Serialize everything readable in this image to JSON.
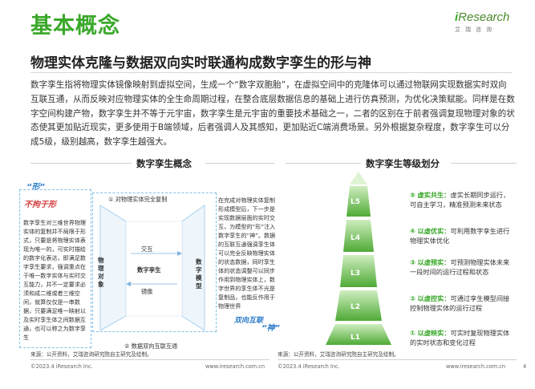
{
  "header": {
    "title": "基本概念",
    "subtitle": "物理实体克隆与数据双向实时联通构成数字孪生的形与神",
    "brand": {
      "logo_i": "i",
      "logo_rest": "Research",
      "sub": "艾瑞咨询"
    }
  },
  "intro": "数字孪生指将物理实体镜像映射到虚拟空间，生成一个“数字双胞胎”，在虚拟空间中的克隆体可以通过物联网实现数据实时双向互联互通，从而反映对应物理实体的全生命周期过程，在整合底层数据信息的基础上进行仿真预测，为优化决策赋能。同样是在数字空间构建产物，数字孪生并不等于元宇宙，数字孪生是元宇宙的重要技术基础之一，二者的区别在于前者强调复现物理对象的状态使其更加贴近现实，更多使用于B端领域，后者强调人及其感知，更加贴近C端消费场景。另外根据复杂程度，数字孪生可以分成5级，级别越高，数字孪生越强大。",
  "left": {
    "title": "数字孪生概念",
    "stamp_xing": "“形”",
    "stamp_xing_sub": "不拘于形",
    "stamp_shen": "“神”",
    "stamp_shen_sub": "双向互联",
    "note_left": "数字孪生对三维世界物理实体的复制并不局限于形式，只要是将物理实体表现为唯一的，可实时描绘的数字化表达，即满足数字孪生要求，强调重点在于唯一数字实体与实时交互能力，并不一定要求必须和成二维或者三维空间，就算仅仅是一串数据，只要满足唯一映射以及实时孪生体之间数据互通，也可以称之为数字孪生",
    "note_right": "在完成对物理实体复制形成模型后，下一步是实现数据层面的实时交互，为模型的“形”注入数字孪生的“神”。数据的互联互通强调孪生体可以完全反映物理实体的状态数据，同时孪生体的状态调整可以同步作用到物理实体上，数字世界的孪生体不光是复制品，也能反作用于物理世界",
    "step1": "① 对物理实体完全复制",
    "step2": "② 数据双向互联互通",
    "phys_label": "物理对象",
    "model_label": "数字模型",
    "center_top": "交互",
    "center_mid": "数字孪生",
    "center_bot": "镜像",
    "source": "来源：公开资料，艾瑞咨询研究院自主研究及绘制。",
    "footer_left": "©2023.4 iResearch Inc.",
    "footer_right": "www.iresearch.com.cn"
  },
  "right": {
    "title": "数字孪生等级划分",
    "levels": [
      {
        "label": "L5",
        "num": "⑤",
        "head": "虚实共生：",
        "body": "虚实长期同步运行，可自主学习，精准预测未来状态"
      },
      {
        "label": "L4",
        "num": "④",
        "head": "以虚优实：",
        "body": "可利用数字孪生进行物理实体优化"
      },
      {
        "label": "L3",
        "num": "③",
        "head": "以虚预实：",
        "body": "可预测物理实体未来一段时间的运行过程和状态"
      },
      {
        "label": "L2",
        "num": "②",
        "head": "以虚控实：",
        "body": "可通过孪生模型间接控制物理实体的运行过程"
      },
      {
        "label": "L1",
        "num": "①",
        "head": "以虚映实：",
        "body": "可实时复现物理实体的实时状态和变化过程"
      }
    ],
    "source": "来源：公开资料，艾瑞咨询研究院自主研究及绘制。",
    "footer_left": "©2023.4 iResearch Inc.",
    "footer_right": "www.iresearch.com.cn"
  },
  "page_number": "4",
  "colors": {
    "accent": "#3aa82a",
    "blue": "#2a7ac8",
    "stamp_red": "#d23a3a"
  }
}
